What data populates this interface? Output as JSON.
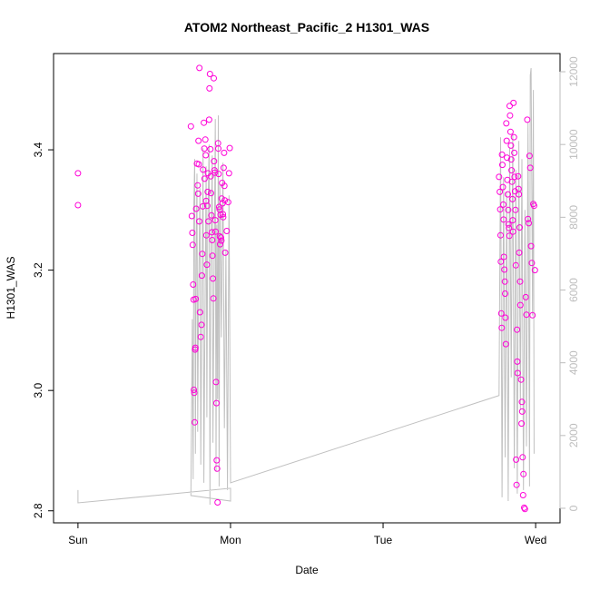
{
  "chart_data": {
    "type": "scatter",
    "title": "ATOM2 Northeast_Pacific_2 H1301_WAS",
    "xlabel": "Date",
    "ylabel": "H1301_WAS",
    "x_ticks": [
      {
        "x": 0,
        "label": "Sun"
      },
      {
        "x": 1,
        "label": "Mon"
      },
      {
        "x": 2,
        "label": "Tue"
      },
      {
        "x": 3,
        "label": "Wed"
      }
    ],
    "xlim": [
      -0.16,
      3.16
    ],
    "ylim": [
      2.78,
      3.56
    ],
    "y_ticks": [
      2.8,
      3.0,
      3.2,
      3.4
    ],
    "y_tick_labels": [
      "2.8",
      "3.0",
      "3.2",
      "3.4"
    ],
    "y2lim": [
      -400,
      12500
    ],
    "y2_ticks": [
      0,
      2000,
      4000,
      6000,
      8000,
      10000,
      12000
    ],
    "y2_tick_labels": [
      "0",
      "2000",
      "4000",
      "6000",
      "8000",
      "10000",
      "12000"
    ],
    "grid": false,
    "series": [
      {
        "kind": "points",
        "axis": "left",
        "color": "#ff00d8",
        "marker": "open-circle",
        "points": [
          [
            0.0,
            3.361
          ],
          [
            0.0,
            3.308
          ],
          [
            0.74,
            3.439
          ],
          [
            0.746,
            3.29
          ],
          [
            0.75,
            3.262
          ],
          [
            0.752,
            3.242
          ],
          [
            0.755,
            3.176
          ],
          [
            0.758,
            3.151
          ],
          [
            0.76,
            3.001
          ],
          [
            0.762,
            2.996
          ],
          [
            0.765,
            2.947
          ],
          [
            0.768,
            3.068
          ],
          [
            0.77,
            3.071
          ],
          [
            0.772,
            3.152
          ],
          [
            0.775,
            3.302
          ],
          [
            0.78,
            3.377
          ],
          [
            0.785,
            3.341
          ],
          [
            0.788,
            3.327
          ],
          [
            0.79,
            3.415
          ],
          [
            0.792,
            3.376
          ],
          [
            0.795,
            3.281
          ],
          [
            0.8,
            3.13
          ],
          [
            0.805,
            3.089
          ],
          [
            0.81,
            3.109
          ],
          [
            0.812,
            3.191
          ],
          [
            0.815,
            3.227
          ],
          [
            0.818,
            3.306
          ],
          [
            0.82,
            3.367
          ],
          [
            0.825,
            3.445
          ],
          [
            0.828,
            3.402
          ],
          [
            0.83,
            3.352
          ],
          [
            0.835,
            3.417
          ],
          [
            0.838,
            3.391
          ],
          [
            0.84,
            3.315
          ],
          [
            0.842,
            3.258
          ],
          [
            0.845,
            3.209
          ],
          [
            0.848,
            3.307
          ],
          [
            0.85,
            3.33
          ],
          [
            0.852,
            3.361
          ],
          [
            0.855,
            3.281
          ],
          [
            0.86,
            3.45
          ],
          [
            0.862,
            3.502
          ],
          [
            0.865,
            3.526
          ],
          [
            0.868,
            3.401
          ],
          [
            0.87,
            3.356
          ],
          [
            0.872,
            3.328
          ],
          [
            0.875,
            3.291
          ],
          [
            0.878,
            3.263
          ],
          [
            0.88,
            3.25
          ],
          [
            0.882,
            3.224
          ],
          [
            0.885,
            3.186
          ],
          [
            0.888,
            3.153
          ],
          [
            0.89,
            3.519
          ],
          [
            0.892,
            3.381
          ],
          [
            0.895,
            3.366
          ],
          [
            0.898,
            3.362
          ],
          [
            0.9,
            3.283
          ],
          [
            0.902,
            3.264
          ],
          [
            0.905,
            3.014
          ],
          [
            0.908,
            2.979
          ],
          [
            0.91,
            2.884
          ],
          [
            0.912,
            2.87
          ],
          [
            0.915,
            2.814
          ],
          [
            0.918,
            3.411
          ],
          [
            0.92,
            3.402
          ],
          [
            0.922,
            3.36
          ],
          [
            0.925,
            3.305
          ],
          [
            0.928,
            3.301
          ],
          [
            0.93,
            3.256
          ],
          [
            0.932,
            3.243
          ],
          [
            0.935,
            3.292
          ],
          [
            0.938,
            3.254
          ],
          [
            0.94,
            3.249
          ],
          [
            0.942,
            3.319
          ],
          [
            0.945,
            3.345
          ],
          [
            0.948,
            3.311
          ],
          [
            0.95,
            3.293
          ],
          [
            0.952,
            3.288
          ],
          [
            0.955,
            3.37
          ],
          [
            0.958,
            3.395
          ],
          [
            0.96,
            3.34
          ],
          [
            0.962,
            3.316
          ],
          [
            0.965,
            3.229
          ],
          [
            0.975,
            3.265
          ],
          [
            0.985,
            3.313
          ],
          [
            0.99,
            3.361
          ],
          [
            0.995,
            3.403
          ],
          [
            0.796,
            3.536
          ],
          [
            2.76,
            3.355
          ],
          [
            2.765,
            3.33
          ],
          [
            2.768,
            3.301
          ],
          [
            2.77,
            3.258
          ],
          [
            2.772,
            3.214
          ],
          [
            2.775,
            3.128
          ],
          [
            2.778,
            3.104
          ],
          [
            2.78,
            3.392
          ],
          [
            2.782,
            3.375
          ],
          [
            2.785,
            3.338
          ],
          [
            2.788,
            3.309
          ],
          [
            2.79,
            3.284
          ],
          [
            2.792,
            3.222
          ],
          [
            2.795,
            3.201
          ],
          [
            2.798,
            3.181
          ],
          [
            2.8,
            3.161
          ],
          [
            2.802,
            3.121
          ],
          [
            2.805,
            3.077
          ],
          [
            2.808,
            3.444
          ],
          [
            2.81,
            3.415
          ],
          [
            2.812,
            3.387
          ],
          [
            2.815,
            3.35
          ],
          [
            2.818,
            3.326
          ],
          [
            2.82,
            3.3
          ],
          [
            2.822,
            3.276
          ],
          [
            2.825,
            3.27
          ],
          [
            2.828,
            3.257
          ],
          [
            2.83,
            3.473
          ],
          [
            2.832,
            3.457
          ],
          [
            2.835,
            3.43
          ],
          [
            2.838,
            3.407
          ],
          [
            2.84,
            3.384
          ],
          [
            2.842,
            3.366
          ],
          [
            2.845,
            3.347
          ],
          [
            2.848,
            3.318
          ],
          [
            2.85,
            3.283
          ],
          [
            2.852,
            3.264
          ],
          [
            2.855,
            3.478
          ],
          [
            2.858,
            3.421
          ],
          [
            2.86,
            3.395
          ],
          [
            2.862,
            3.355
          ],
          [
            2.865,
            3.331
          ],
          [
            2.868,
            3.3
          ],
          [
            2.87,
            3.208
          ],
          [
            2.872,
            2.885
          ],
          [
            2.875,
            2.843
          ],
          [
            2.878,
            3.101
          ],
          [
            2.88,
            3.048
          ],
          [
            2.882,
            3.029
          ],
          [
            2.885,
            3.356
          ],
          [
            2.888,
            3.335
          ],
          [
            2.89,
            3.326
          ],
          [
            2.892,
            3.229
          ],
          [
            2.895,
            3.271
          ],
          [
            2.898,
            3.181
          ],
          [
            2.9,
            3.142
          ],
          [
            2.905,
            3.018
          ],
          [
            2.908,
            2.945
          ],
          [
            2.91,
            2.981
          ],
          [
            2.912,
            2.965
          ],
          [
            2.915,
            2.889
          ],
          [
            2.918,
            2.826
          ],
          [
            2.92,
            2.861
          ],
          [
            2.925,
            2.805
          ],
          [
            2.93,
            2.803
          ],
          [
            2.935,
            3.155
          ],
          [
            2.94,
            3.126
          ],
          [
            2.945,
            3.45
          ],
          [
            2.95,
            3.285
          ],
          [
            2.955,
            3.278
          ],
          [
            2.96,
            3.39
          ],
          [
            2.965,
            3.37
          ],
          [
            2.97,
            3.24
          ],
          [
            2.975,
            3.212
          ],
          [
            2.98,
            3.125
          ],
          [
            2.985,
            3.31
          ],
          [
            2.99,
            3.307
          ],
          [
            2.995,
            3.2
          ]
        ]
      },
      {
        "kind": "line",
        "axis": "right",
        "color": "#c0c0c0",
        "points": [
          [
            0.0,
            500
          ],
          [
            0.0,
            150
          ],
          [
            1.0,
            550
          ],
          [
            1.0,
            200
          ],
          [
            0.74,
            350
          ],
          [
            0.75,
            5200
          ],
          [
            0.755,
            800
          ],
          [
            0.76,
            8400
          ],
          [
            0.765,
            9600
          ],
          [
            0.77,
            1500
          ],
          [
            0.775,
            6800
          ],
          [
            0.78,
            9200
          ],
          [
            0.785,
            2100
          ],
          [
            0.79,
            5600
          ],
          [
            0.8,
            8800
          ],
          [
            0.805,
            1200
          ],
          [
            0.81,
            4400
          ],
          [
            0.82,
            9900
          ],
          [
            0.825,
            700
          ],
          [
            0.83,
            3800
          ],
          [
            0.84,
            9400
          ],
          [
            0.845,
            2500
          ],
          [
            0.85,
            7600
          ],
          [
            0.86,
            10000
          ],
          [
            0.865,
            100
          ],
          [
            0.87,
            6200
          ],
          [
            0.88,
            9700
          ],
          [
            0.885,
            1800
          ],
          [
            0.89,
            5100
          ],
          [
            0.9,
            10700
          ],
          [
            0.905,
            1000
          ],
          [
            0.91,
            7800
          ],
          [
            0.915,
            3000
          ],
          [
            0.92,
            10800
          ],
          [
            0.925,
            600
          ],
          [
            0.93,
            8900
          ],
          [
            0.94,
            4700
          ],
          [
            0.95,
            9500
          ],
          [
            0.96,
            2200
          ],
          [
            0.97,
            7100
          ],
          [
            0.98,
            500
          ],
          [
            0.99,
            8600
          ],
          [
            1.0,
            700
          ],
          [
            2.76,
            3100
          ],
          [
            2.77,
            10200
          ],
          [
            2.78,
            300
          ],
          [
            2.79,
            9100
          ],
          [
            2.8,
            1400
          ],
          [
            2.81,
            8700
          ],
          [
            2.82,
            200
          ],
          [
            2.83,
            9900
          ],
          [
            2.84,
            3600
          ],
          [
            2.85,
            10300
          ],
          [
            2.86,
            1100
          ],
          [
            2.87,
            9300
          ],
          [
            2.88,
            400
          ],
          [
            2.89,
            10100
          ],
          [
            2.9,
            2700
          ],
          [
            2.91,
            9600
          ],
          [
            2.92,
            500
          ],
          [
            2.93,
            8200
          ],
          [
            2.94,
            1700
          ],
          [
            2.95,
            10600
          ],
          [
            2.96,
            600
          ],
          [
            2.965,
            11900
          ],
          [
            2.97,
            12100
          ],
          [
            2.975,
            8900
          ],
          [
            2.98,
            5300
          ],
          [
            2.985,
            11500
          ],
          [
            2.99,
            1500
          ]
        ]
      }
    ]
  }
}
